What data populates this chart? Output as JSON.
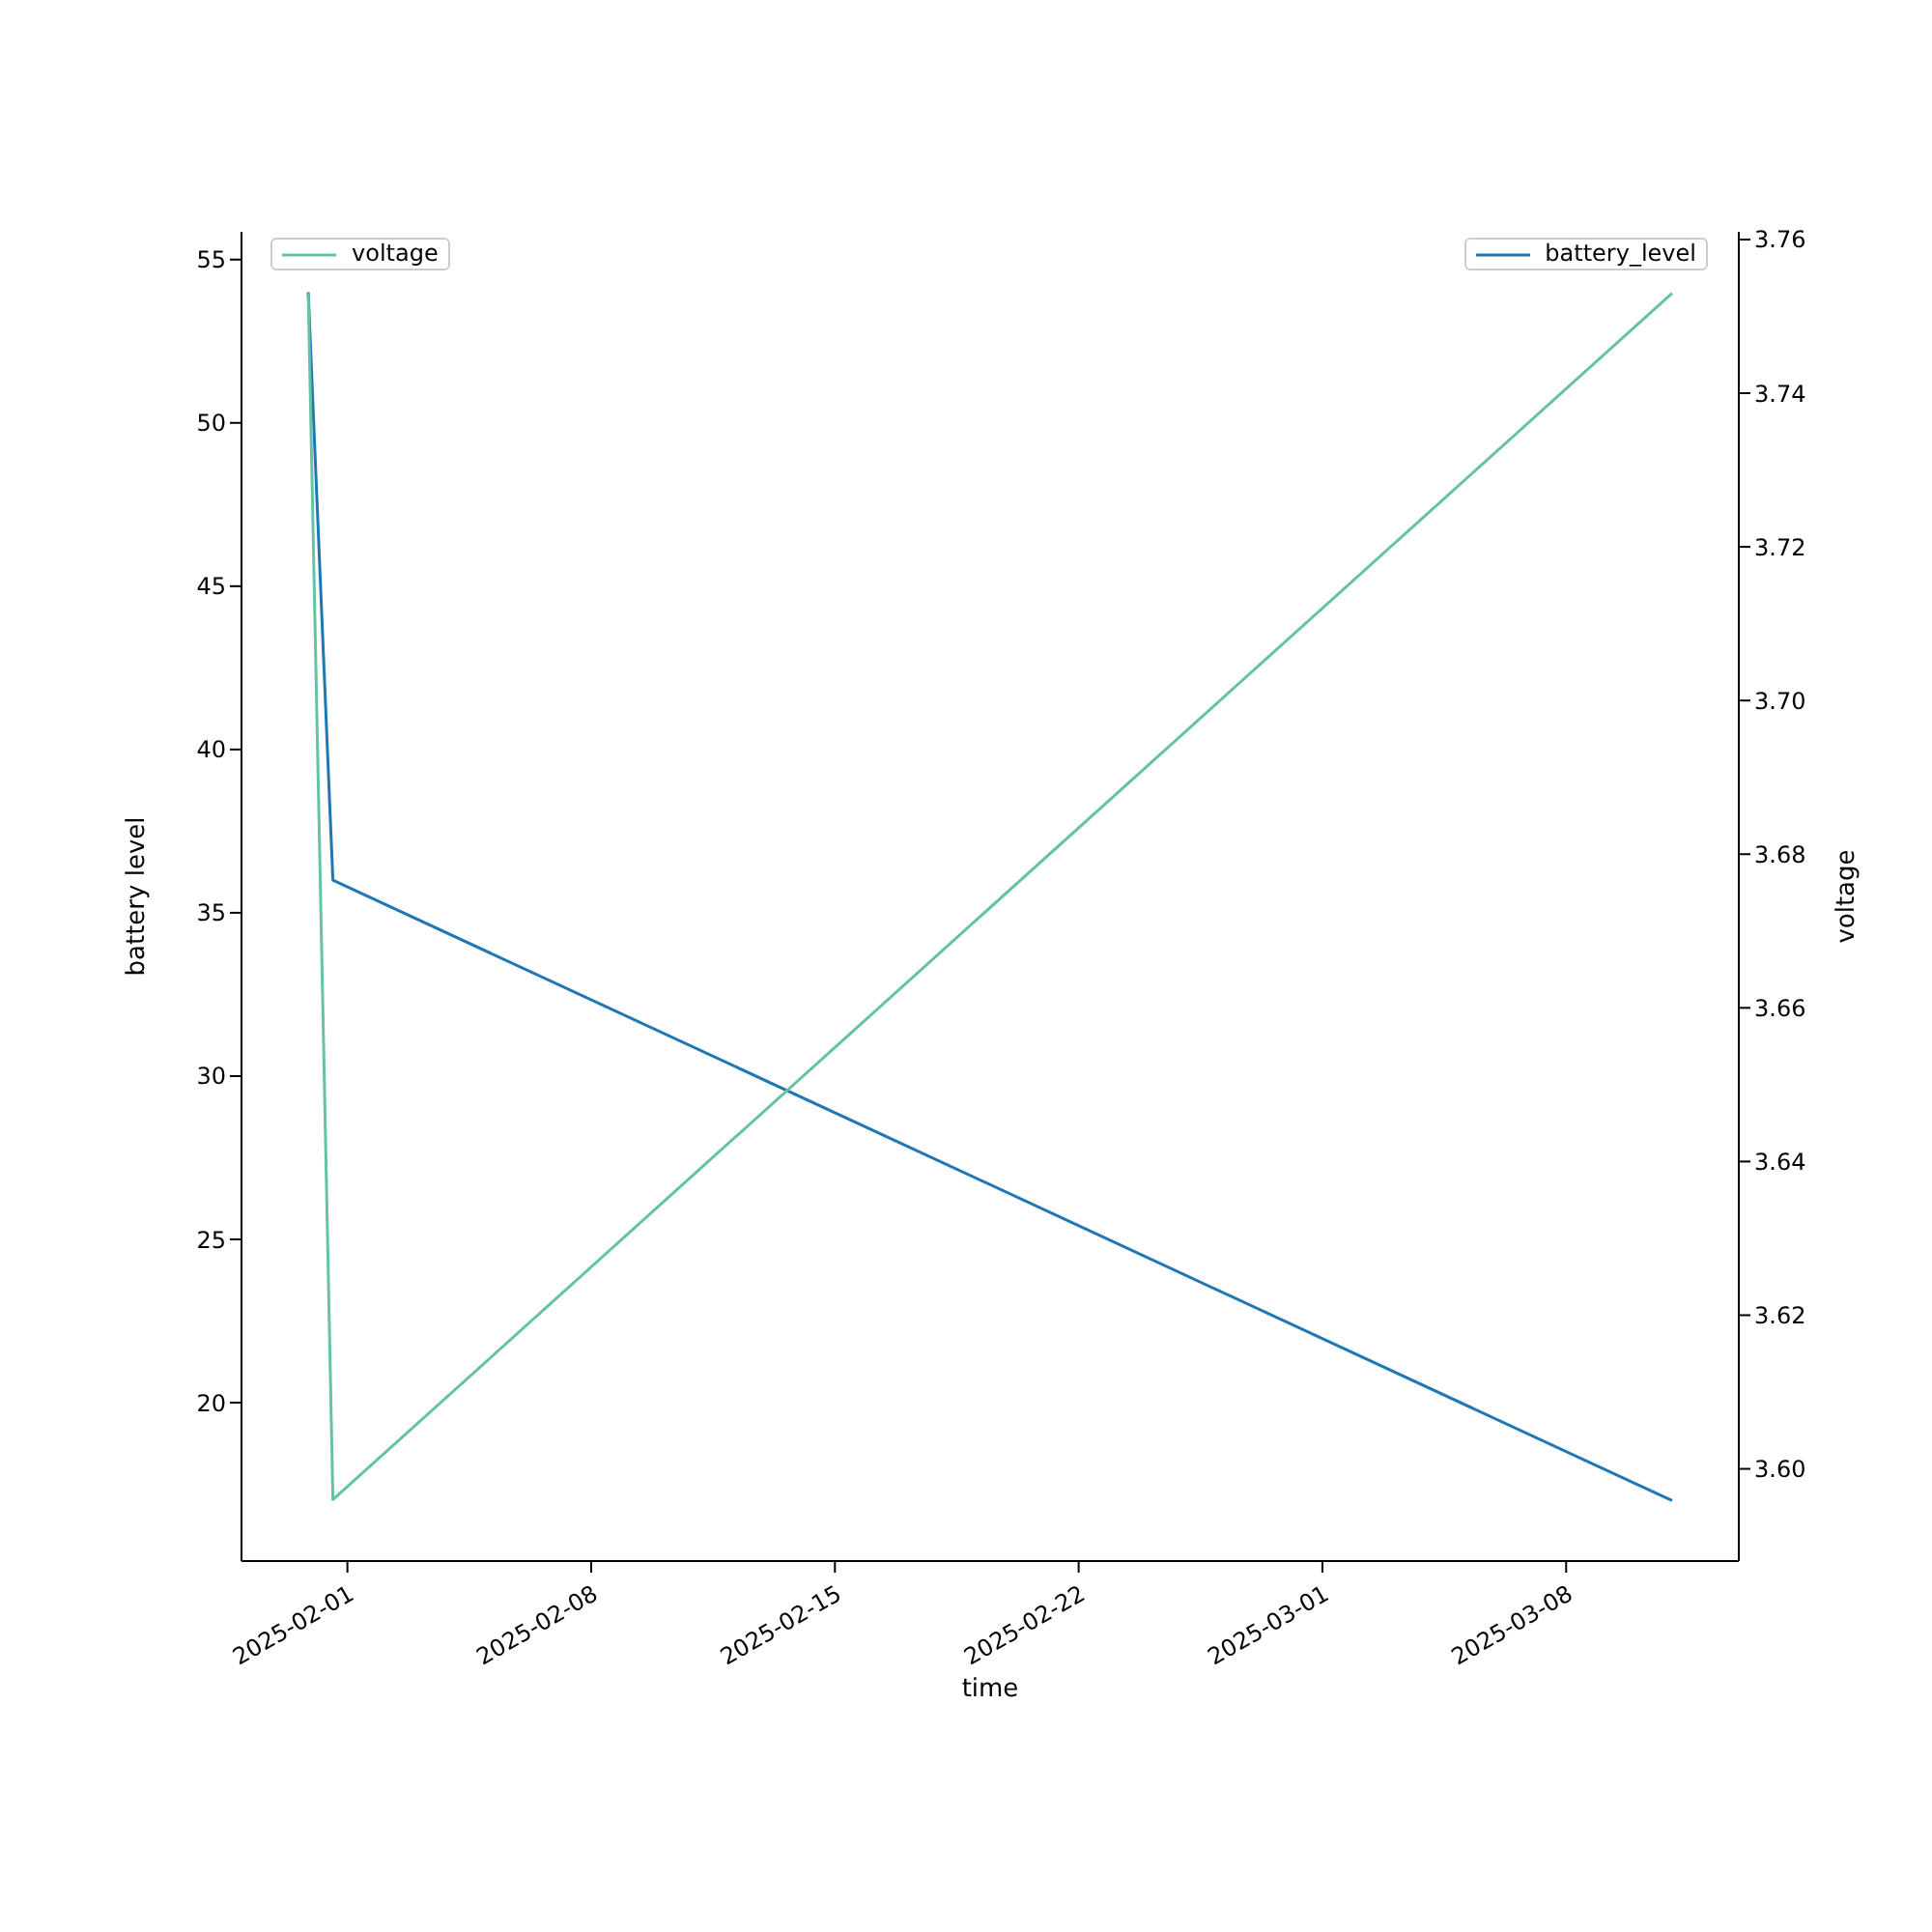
{
  "chart_data": {
    "type": "line",
    "xlabel": "time",
    "ylabel": "battery level",
    "y2label": "voltage",
    "x": [
      "2025-01-30T21:00",
      "2025-01-31T14:00",
      "2025-03-11T01:00"
    ],
    "series": [
      {
        "name": "battery_level",
        "color": "#1f77b4",
        "values": [
          54,
          36,
          17
        ]
      },
      {
        "name": "voltage",
        "color": "#66c2a5",
        "values": [
          3.753,
          3.596,
          3.753
        ],
        "axis": "y2"
      }
    ],
    "xlim": [
      "2025-01-28T23:00",
      "2025-03-12T23:00"
    ],
    "xticks": [
      "2025-02-01",
      "2025-02-08",
      "2025-02-15",
      "2025-02-22",
      "2025-03-01",
      "2025-03-08"
    ],
    "ylim": [
      15.15,
      55.85
    ],
    "yticks": [
      20,
      25,
      30,
      35,
      40,
      45,
      50,
      55
    ],
    "legend": "top",
    "y2lim": [
      3.588,
      3.761
    ],
    "y2ticks": [
      {
        "value": 3.6,
        "label": "3.60"
      },
      3.62,
      3.64,
      3.66,
      3.68,
      {
        "value": 3.7,
        "label": "3.70"
      },
      3.72,
      3.74,
      3.76
    ]
  }
}
